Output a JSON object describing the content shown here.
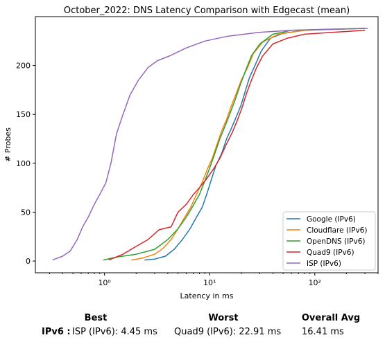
{
  "chart_data": {
    "type": "line",
    "title": "October_2022: DNS Latency Comparison with Edgecast (mean)",
    "xlabel": "Latency in ms",
    "ylabel": "# Probes",
    "xscale": "log",
    "xlim": [
      0.22,
      400
    ],
    "ylim": [
      -12,
      250
    ],
    "xticks": [
      {
        "value": 1,
        "label": "10⁰"
      },
      {
        "value": 10,
        "label": "10¹"
      },
      {
        "value": 100,
        "label": "10²"
      }
    ],
    "yticks": [
      0,
      50,
      100,
      150,
      200
    ],
    "grid": false,
    "legend_position": "bottom-right",
    "series": [
      {
        "name": "Google (IPv6)",
        "color": "#1f77b4",
        "points": [
          [
            2.4,
            1
          ],
          [
            3,
            2
          ],
          [
            3.8,
            5
          ],
          [
            4.6,
            12
          ],
          [
            5.5,
            22
          ],
          [
            6.5,
            33
          ],
          [
            7.5,
            45
          ],
          [
            8.5,
            55
          ],
          [
            9.5,
            70
          ],
          [
            10.5,
            85
          ],
          [
            11.5,
            98
          ],
          [
            13,
            110
          ],
          [
            14.5,
            125
          ],
          [
            16,
            135
          ],
          [
            18,
            148
          ],
          [
            20,
            160
          ],
          [
            22,
            175
          ],
          [
            24,
            188
          ],
          [
            27,
            200
          ],
          [
            31,
            215
          ],
          [
            38,
            228
          ],
          [
            50,
            233
          ],
          [
            80,
            236
          ],
          [
            150,
            237
          ],
          [
            300,
            238
          ]
        ]
      },
      {
        "name": "Cloudflare (IPv6)",
        "color": "#ff7f0e",
        "points": [
          [
            1.8,
            1
          ],
          [
            2.3,
            3
          ],
          [
            3,
            7
          ],
          [
            3.6,
            13
          ],
          [
            4.3,
            22
          ],
          [
            5,
            33
          ],
          [
            5.8,
            45
          ],
          [
            6.6,
            55
          ],
          [
            7.5,
            68
          ],
          [
            8.6,
            82
          ],
          [
            9.6,
            95
          ],
          [
            10.6,
            105
          ],
          [
            11.8,
            120
          ],
          [
            13,
            133
          ],
          [
            14.5,
            145
          ],
          [
            16,
            158
          ],
          [
            18,
            172
          ],
          [
            20,
            185
          ],
          [
            23,
            198
          ],
          [
            26,
            212
          ],
          [
            32,
            224
          ],
          [
            45,
            232
          ],
          [
            80,
            236
          ],
          [
            300,
            238
          ]
        ]
      },
      {
        "name": "OpenDNS (IPv6)",
        "color": "#2ca02c",
        "points": [
          [
            0.97,
            1
          ],
          [
            1.3,
            4
          ],
          [
            2,
            7
          ],
          [
            3,
            12
          ],
          [
            4,
            22
          ],
          [
            5,
            33
          ],
          [
            6,
            45
          ],
          [
            7,
            57
          ],
          [
            8,
            68
          ],
          [
            9,
            82
          ],
          [
            10,
            95
          ],
          [
            11.2,
            110
          ],
          [
            12.5,
            125
          ],
          [
            14,
            138
          ],
          [
            15.5,
            150
          ],
          [
            17.5,
            165
          ],
          [
            19.5,
            180
          ],
          [
            22,
            195
          ],
          [
            25,
            210
          ],
          [
            30,
            222
          ],
          [
            40,
            232
          ],
          [
            60,
            236
          ],
          [
            120,
            237
          ],
          [
            300,
            238
          ]
        ]
      },
      {
        "name": "Quad9 (IPv6)",
        "color": "#d62728",
        "points": [
          [
            1.1,
            1
          ],
          [
            1.5,
            7
          ],
          [
            2,
            15
          ],
          [
            2.6,
            22
          ],
          [
            3.3,
            32
          ],
          [
            4.3,
            35
          ],
          [
            5,
            50
          ],
          [
            6,
            58
          ],
          [
            7,
            68
          ],
          [
            8,
            75
          ],
          [
            9.5,
            85
          ],
          [
            11,
            95
          ],
          [
            12.5,
            105
          ],
          [
            14.5,
            120
          ],
          [
            16.5,
            132
          ],
          [
            18.5,
            145
          ],
          [
            20.5,
            158
          ],
          [
            22.5,
            172
          ],
          [
            25,
            185
          ],
          [
            28,
            198
          ],
          [
            32,
            210
          ],
          [
            40,
            222
          ],
          [
            55,
            228
          ],
          [
            80,
            232
          ],
          [
            150,
            234
          ],
          [
            300,
            236
          ]
        ]
      },
      {
        "name": "ISP (IPv6)",
        "color": "#9467bd",
        "points": [
          [
            0.32,
            1
          ],
          [
            0.4,
            5
          ],
          [
            0.47,
            10
          ],
          [
            0.55,
            22
          ],
          [
            0.62,
            35
          ],
          [
            0.7,
            45
          ],
          [
            0.8,
            58
          ],
          [
            0.92,
            70
          ],
          [
            1.03,
            80
          ],
          [
            1.15,
            100
          ],
          [
            1.3,
            130
          ],
          [
            1.5,
            150
          ],
          [
            1.75,
            170
          ],
          [
            2.1,
            185
          ],
          [
            2.6,
            198
          ],
          [
            3.2,
            205
          ],
          [
            4.2,
            210
          ],
          [
            6,
            218
          ],
          [
            9,
            225
          ],
          [
            15,
            230
          ],
          [
            30,
            234
          ],
          [
            60,
            236
          ],
          [
            150,
            237
          ],
          [
            320,
            238
          ]
        ]
      }
    ]
  },
  "stats": {
    "best_header": "Best",
    "worst_header": "Worst",
    "avg_header": "Overall Avg",
    "protocol_label": "IPv6 :",
    "best_value": "ISP (IPv6): 4.45 ms",
    "worst_value": "Quad9 (IPv6): 22.91 ms",
    "avg_value": "16.41 ms"
  }
}
